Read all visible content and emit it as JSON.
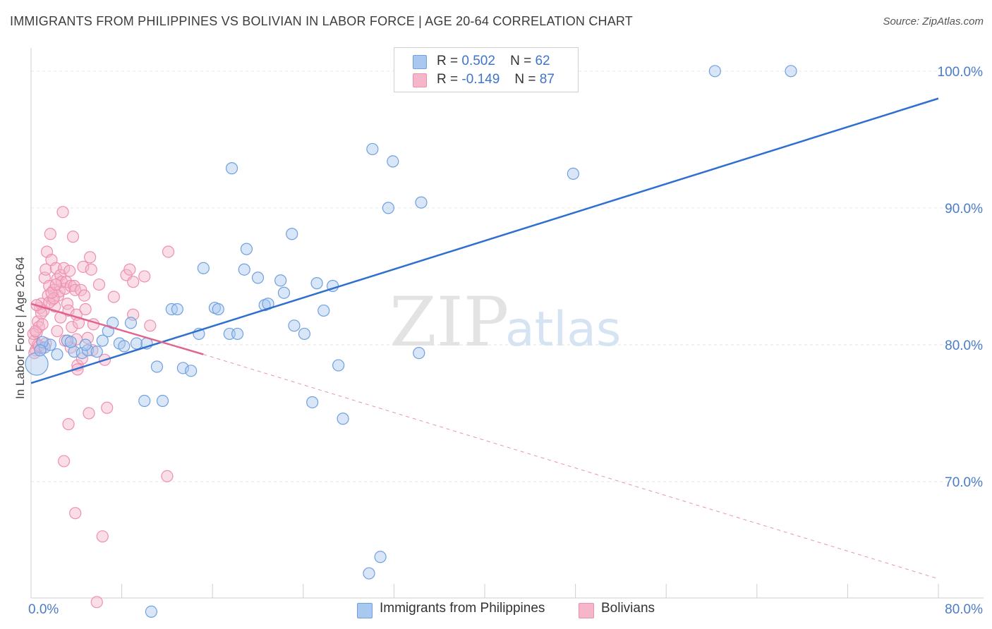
{
  "title": "IMMIGRANTS FROM PHILIPPINES VS BOLIVIAN IN LABOR FORCE | AGE 20-64 CORRELATION CHART",
  "source": "Source: ZipAtlas.com",
  "watermark": {
    "zip": "ZIP",
    "atlas": "atlas"
  },
  "legend": [
    {
      "r_label": "R =",
      "r_value": "0.502",
      "n_label": "N =",
      "n_value": "62",
      "color": "#a9c8f0"
    },
    {
      "r_label": "R =",
      "r_value": "-0.149",
      "n_label": "N =",
      "n_value": "87",
      "color": "#f5b6c9"
    }
  ],
  "chart_data": {
    "type": "scatter",
    "title": "IMMIGRANTS FROM PHILIPPINES VS BOLIVIAN IN LABOR FORCE | AGE 20-64 CORRELATION CHART",
    "xlabel": "",
    "ylabel": "In Labor Force | Age 20-64",
    "xlim": [
      0,
      80
    ],
    "ylim": [
      61.5,
      102
    ],
    "x_tick_labels": [
      {
        "value": 0,
        "label": "0.0%"
      },
      {
        "value": 80,
        "label": "80.0%"
      }
    ],
    "y_tick_labels": [
      {
        "value": 70,
        "label": "70.0%"
      },
      {
        "value": 80,
        "label": "80.0%"
      },
      {
        "value": 90,
        "label": "90.0%"
      },
      {
        "value": 100,
        "label": "100.0%"
      }
    ],
    "grid": true,
    "legend_position": "top-center",
    "series": [
      {
        "name": "Immigrants from Philippines",
        "color": "#6fa0e0",
        "fill": "#a9c8f0",
        "trend": {
          "x": [
            0,
            80
          ],
          "y": [
            77.2,
            98.0
          ],
          "color": "#2f6fcf"
        },
        "points": [
          [
            0.5,
            78.6
          ],
          [
            1.2,
            79.8
          ],
          [
            1.7,
            80.0
          ],
          [
            2.3,
            79.3
          ],
          [
            3.2,
            80.3
          ],
          [
            3.8,
            79.5
          ],
          [
            4.5,
            79.4
          ],
          [
            5.0,
            79.6
          ],
          [
            5.8,
            79.5
          ],
          [
            6.3,
            80.3
          ],
          [
            6.8,
            81.0
          ],
          [
            7.2,
            81.6
          ],
          [
            7.8,
            80.1
          ],
          [
            8.2,
            79.9
          ],
          [
            8.8,
            81.6
          ],
          [
            9.3,
            80.1
          ],
          [
            10.2,
            80.1
          ],
          [
            11.1,
            78.4
          ],
          [
            12.4,
            82.6
          ],
          [
            12.9,
            82.6
          ],
          [
            13.4,
            78.3
          ],
          [
            14.1,
            78.1
          ],
          [
            14.8,
            80.8
          ],
          [
            15.2,
            85.6
          ],
          [
            16.2,
            82.7
          ],
          [
            16.5,
            82.6
          ],
          [
            17.5,
            80.8
          ],
          [
            18.2,
            80.8
          ],
          [
            19.0,
            87.0
          ],
          [
            18.8,
            85.5
          ],
          [
            20.0,
            84.9
          ],
          [
            20.6,
            82.9
          ],
          [
            20.9,
            83.0
          ],
          [
            22.0,
            84.7
          ],
          [
            22.3,
            83.8
          ],
          [
            23.0,
            88.1
          ],
          [
            23.2,
            81.4
          ],
          [
            24.1,
            80.8
          ],
          [
            24.8,
            75.8
          ],
          [
            25.2,
            84.5
          ],
          [
            25.8,
            82.5
          ],
          [
            26.6,
            84.3
          ],
          [
            27.1,
            78.5
          ],
          [
            27.5,
            74.6
          ],
          [
            17.7,
            92.9
          ],
          [
            30.1,
            94.3
          ],
          [
            31.5,
            90.0
          ],
          [
            31.9,
            93.4
          ],
          [
            34.2,
            79.4
          ],
          [
            34.4,
            90.4
          ],
          [
            60.3,
            100.0
          ],
          [
            67.0,
            100.0
          ],
          [
            47.8,
            92.5
          ],
          [
            30.8,
            64.5
          ],
          [
            29.8,
            63.3
          ],
          [
            10.0,
            75.9
          ],
          [
            11.6,
            75.9
          ],
          [
            10.6,
            60.5
          ],
          [
            1.0,
            80.2
          ],
          [
            0.8,
            79.6
          ],
          [
            3.5,
            80.2
          ],
          [
            4.8,
            80.0
          ]
        ]
      },
      {
        "name": "Bolivians",
        "color": "#ee8fae",
        "fill": "#f5b6c9",
        "trend": {
          "x": [
            0,
            15.2
          ],
          "y": [
            83.0,
            79.3
          ],
          "color": "#e0648f",
          "dashed_x": [
            15.2,
            80
          ],
          "dashed_y": [
            79.3,
            62.9
          ]
        },
        "points": [
          [
            0.3,
            80.3
          ],
          [
            0.4,
            79.6
          ],
          [
            0.5,
            80.9
          ],
          [
            0.6,
            81.7
          ],
          [
            0.7,
            81.3
          ],
          [
            0.8,
            82.7
          ],
          [
            0.9,
            83.0
          ],
          [
            1.0,
            79.8
          ],
          [
            1.1,
            82.5
          ],
          [
            1.2,
            84.9
          ],
          [
            1.3,
            85.5
          ],
          [
            1.4,
            86.8
          ],
          [
            1.5,
            83.6
          ],
          [
            1.6,
            84.3
          ],
          [
            1.7,
            88.1
          ],
          [
            1.8,
            86.2
          ],
          [
            1.9,
            83.3
          ],
          [
            2.0,
            84.0
          ],
          [
            2.1,
            82.8
          ],
          [
            2.2,
            85.6
          ],
          [
            2.3,
            84.8
          ],
          [
            2.4,
            83.6
          ],
          [
            2.5,
            83.9
          ],
          [
            2.6,
            85.1
          ],
          [
            2.7,
            84.6
          ],
          [
            2.8,
            89.7
          ],
          [
            2.9,
            85.6
          ],
          [
            3.0,
            84.1
          ],
          [
            3.1,
            84.6
          ],
          [
            3.2,
            83.0
          ],
          [
            3.3,
            82.5
          ],
          [
            3.4,
            85.4
          ],
          [
            3.5,
            84.3
          ],
          [
            3.6,
            81.3
          ],
          [
            3.7,
            87.9
          ],
          [
            3.8,
            84.3
          ],
          [
            3.9,
            84.0
          ],
          [
            4.0,
            82.2
          ],
          [
            4.2,
            81.6
          ],
          [
            4.4,
            84.0
          ],
          [
            4.6,
            85.7
          ],
          [
            4.7,
            83.6
          ],
          [
            4.8,
            82.6
          ],
          [
            5.0,
            80.5
          ],
          [
            5.2,
            86.4
          ],
          [
            5.3,
            85.5
          ],
          [
            5.4,
            79.6
          ],
          [
            5.5,
            81.5
          ],
          [
            6.0,
            84.4
          ],
          [
            6.5,
            78.9
          ],
          [
            7.3,
            83.5
          ],
          [
            8.4,
            85.1
          ],
          [
            8.7,
            85.5
          ],
          [
            9.0,
            84.6
          ],
          [
            9.0,
            82.2
          ],
          [
            10.0,
            85.0
          ],
          [
            10.5,
            81.4
          ],
          [
            12.1,
            86.8
          ],
          [
            4.1,
            78.5
          ],
          [
            4.1,
            78.2
          ],
          [
            3.3,
            74.2
          ],
          [
            5.1,
            75.0
          ],
          [
            6.7,
            75.4
          ],
          [
            2.9,
            71.5
          ],
          [
            3.9,
            67.7
          ],
          [
            6.3,
            66.0
          ],
          [
            12.0,
            70.4
          ],
          [
            5.8,
            61.2
          ],
          [
            0.2,
            80.8
          ],
          [
            0.3,
            79.4
          ],
          [
            0.4,
            81.0
          ],
          [
            0.6,
            80.0
          ],
          [
            0.9,
            82.3
          ],
          [
            1.3,
            80.1
          ],
          [
            1.6,
            83.1
          ],
          [
            2.0,
            83.4
          ],
          [
            2.3,
            81.0
          ],
          [
            2.6,
            82.0
          ],
          [
            3.0,
            80.3
          ],
          [
            3.5,
            79.8
          ],
          [
            4.0,
            80.4
          ],
          [
            4.5,
            79.0
          ],
          [
            0.5,
            82.9
          ],
          [
            0.7,
            79.9
          ],
          [
            1.0,
            81.5
          ],
          [
            1.8,
            83.8
          ],
          [
            2.2,
            84.4
          ]
        ]
      }
    ]
  }
}
